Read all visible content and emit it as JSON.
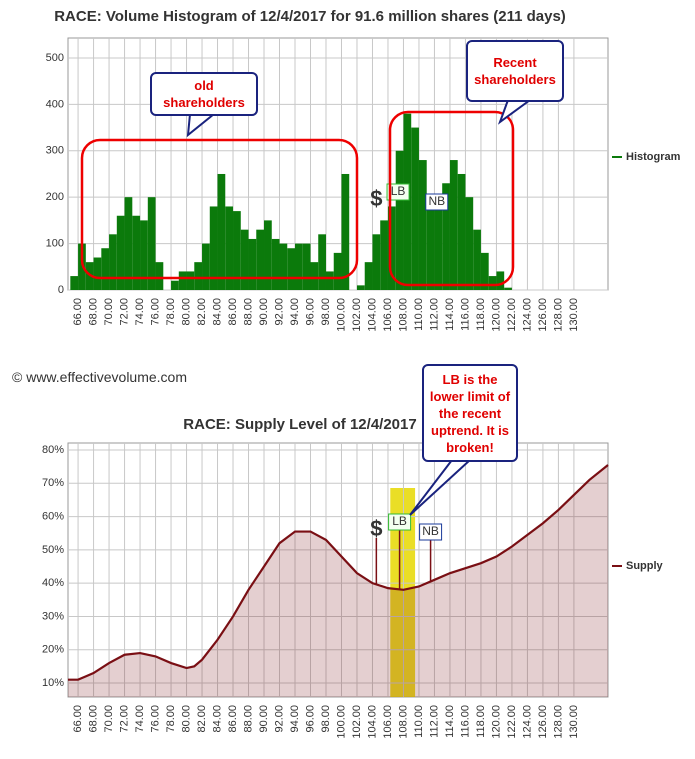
{
  "chart_data": [
    {
      "type": "histogram",
      "title": "RACE: Volume Histogram of 12/4/2017 for 91.6 million shares (211 days)",
      "bins": [
        65,
        66,
        67,
        68,
        69,
        70,
        71,
        72,
        73,
        74,
        75,
        76,
        77,
        78,
        79,
        80,
        81,
        82,
        83,
        84,
        85,
        86,
        87,
        88,
        89,
        90,
        91,
        92,
        93,
        94,
        95,
        96,
        97,
        98,
        99,
        100,
        101,
        102,
        103,
        104,
        105,
        106,
        107,
        108,
        109,
        110,
        111,
        112,
        113,
        114,
        115,
        116,
        117,
        118,
        119,
        120,
        121,
        122
      ],
      "series": [
        {
          "name": "Histogram",
          "color": "#0b7a0b",
          "values": [
            30,
            100,
            60,
            70,
            90,
            120,
            160,
            200,
            160,
            150,
            200,
            60,
            0,
            20,
            40,
            40,
            60,
            100,
            180,
            250,
            180,
            170,
            130,
            110,
            130,
            150,
            110,
            100,
            90,
            100,
            100,
            60,
            120,
            40,
            80,
            250,
            0,
            10,
            60,
            120,
            150,
            180,
            300,
            380,
            350,
            280,
            200,
            180,
            230,
            280,
            250,
            200,
            130,
            80,
            30,
            40,
            5
          ]
        }
      ],
      "xlim": [
        64.7,
        134.4
      ],
      "xticks": [
        {
          "value": 66,
          "label": "66.00"
        },
        {
          "value": 68,
          "label": "68.00"
        },
        {
          "value": 70,
          "label": "70.00"
        },
        {
          "value": 72,
          "label": "72.00"
        },
        {
          "value": 74,
          "label": "74.00"
        },
        {
          "value": 76,
          "label": "76.00"
        },
        {
          "value": 78,
          "label": "78.00"
        },
        {
          "value": 80,
          "label": "80.00"
        },
        {
          "value": 82,
          "label": "82.00"
        },
        {
          "value": 84,
          "label": "84.00"
        },
        {
          "value": 86,
          "label": "86.00"
        },
        {
          "value": 88,
          "label": "88.00"
        },
        {
          "value": 90,
          "label": "90.00"
        },
        {
          "value": 92,
          "label": "92.00"
        },
        {
          "value": 94,
          "label": "94.00"
        },
        {
          "value": 96,
          "label": "96.00"
        },
        {
          "value": 98,
          "label": "98.00"
        },
        {
          "value": 100,
          "label": "100.00"
        },
        {
          "value": 102,
          "label": "102.00"
        },
        {
          "value": 104,
          "label": "104.00"
        },
        {
          "value": 106,
          "label": "106.00"
        },
        {
          "value": 108,
          "label": "108.00"
        },
        {
          "value": 110,
          "label": "110.00"
        },
        {
          "value": 112,
          "label": "112.00"
        },
        {
          "value": 114,
          "label": "114.00"
        },
        {
          "value": 116,
          "label": "116.00"
        },
        {
          "value": 118,
          "label": "118.00"
        },
        {
          "value": 120,
          "label": "120.00"
        },
        {
          "value": 122,
          "label": "122.00"
        },
        {
          "value": 124,
          "label": "124.00"
        },
        {
          "value": 126,
          "label": "126.00"
        },
        {
          "value": 128,
          "label": "128.00"
        },
        {
          "value": 130,
          "label": "130.00"
        }
      ],
      "ylim": [
        0,
        543
      ],
      "yticks": [
        0,
        100,
        200,
        300,
        400,
        500
      ],
      "grid": true,
      "legend": "right",
      "markers": [
        {
          "label": "$",
          "x": 104.5
        },
        {
          "label": "LB",
          "x": 107.3
        },
        {
          "label": "NB",
          "x": 112.3
        }
      ],
      "annotations": [
        "old shareholders",
        "Recent shareholders"
      ],
      "copyright": "© www.effectivevolume.com"
    },
    {
      "type": "line",
      "title": "RACE: Supply Level of 12/4/2017",
      "x": [
        64.7,
        66,
        67,
        68,
        70,
        72,
        74,
        76,
        78,
        80,
        81,
        82,
        84,
        86,
        88,
        90,
        92,
        94,
        96,
        98,
        100,
        102,
        104,
        106,
        108,
        110,
        112,
        114,
        116,
        118,
        120,
        122,
        124,
        126,
        128,
        130,
        132,
        134.4
      ],
      "series": [
        {
          "name": "Supply",
          "color": "#7a0f14",
          "values": [
            11,
            11,
            12,
            13,
            16,
            18.5,
            19,
            18,
            16,
            14.5,
            15,
            17,
            23,
            30,
            38,
            45,
            52,
            55.5,
            55.5,
            53,
            48,
            43,
            40,
            38.5,
            38,
            39,
            41,
            43,
            44.5,
            46,
            48,
            51,
            54.5,
            58,
            62,
            66.5,
            71,
            75.5
          ]
        }
      ],
      "xlim": [
        64.7,
        134.4
      ],
      "xticks": [
        {
          "value": 66,
          "label": "66.00"
        },
        {
          "value": 68,
          "label": "68.00"
        },
        {
          "value": 70,
          "label": "70.00"
        },
        {
          "value": 72,
          "label": "72.00"
        },
        {
          "value": 74,
          "label": "74.00"
        },
        {
          "value": 76,
          "label": "76.00"
        },
        {
          "value": 78,
          "label": "78.00"
        },
        {
          "value": 80,
          "label": "80.00"
        },
        {
          "value": 82,
          "label": "82.00"
        },
        {
          "value": 84,
          "label": "84.00"
        },
        {
          "value": 86,
          "label": "86.00"
        },
        {
          "value": 88,
          "label": "88.00"
        },
        {
          "value": 90,
          "label": "90.00"
        },
        {
          "value": 92,
          "label": "92.00"
        },
        {
          "value": 94,
          "label": "94.00"
        },
        {
          "value": 96,
          "label": "96.00"
        },
        {
          "value": 98,
          "label": "98.00"
        },
        {
          "value": 100,
          "label": "100.00"
        },
        {
          "value": 102,
          "label": "102.00"
        },
        {
          "value": 104,
          "label": "104.00"
        },
        {
          "value": 106,
          "label": "106.00"
        },
        {
          "value": 108,
          "label": "108.00"
        },
        {
          "value": 110,
          "label": "110.00"
        },
        {
          "value": 112,
          "label": "112.00"
        },
        {
          "value": 114,
          "label": "114.00"
        },
        {
          "value": 116,
          "label": "116.00"
        },
        {
          "value": 118,
          "label": "118.00"
        },
        {
          "value": 120,
          "label": "120.00"
        },
        {
          "value": 122,
          "label": "122.00"
        },
        {
          "value": 124,
          "label": "124.00"
        },
        {
          "value": 126,
          "label": "126.00"
        },
        {
          "value": 128,
          "label": "128.00"
        },
        {
          "value": 130,
          "label": "130.00"
        }
      ],
      "ylim": [
        5.8,
        82.1
      ],
      "yticks": [
        {
          "value": 10,
          "label": "10%"
        },
        {
          "value": 20,
          "label": "20%"
        },
        {
          "value": 30,
          "label": "30%"
        },
        {
          "value": 40,
          "label": "40%"
        },
        {
          "value": 50,
          "label": "50%"
        },
        {
          "value": 60,
          "label": "60%"
        },
        {
          "value": 70,
          "label": "70%"
        },
        {
          "value": 80,
          "label": "80%"
        }
      ],
      "grid": true,
      "legend": "right",
      "band": [
        106.3,
        109.5
      ],
      "band_color": "#e6d800",
      "markers": [
        {
          "label": "$",
          "x": 104.5
        },
        {
          "label": "LB",
          "x": 107.5
        },
        {
          "label": "NB",
          "x": 111.5
        }
      ],
      "annotations": [
        "LB is the lower limit of the recent uptrend. It is broken!"
      ]
    }
  ]
}
